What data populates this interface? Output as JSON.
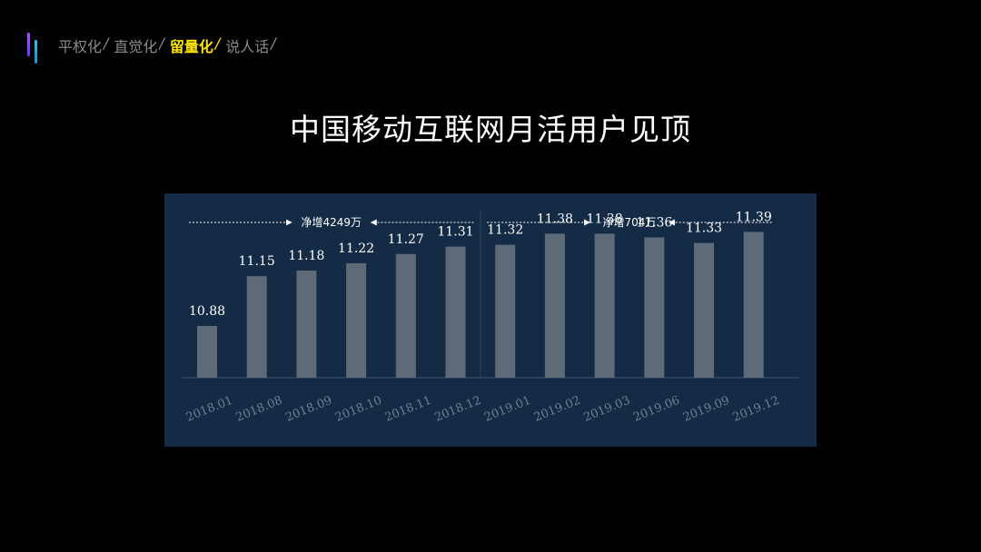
{
  "nav": {
    "items": [
      {
        "label": "平权化",
        "sep": "/",
        "active": false
      },
      {
        "label": "直觉化",
        "sep": "/",
        "active": false
      },
      {
        "label": "留量化",
        "sep": "/",
        "active": true
      },
      {
        "label": "说人话",
        "sep": "/",
        "active": false
      }
    ]
  },
  "title": "中国移动互联网月活用户见顶",
  "colors": {
    "background": "#000000",
    "panel": "#132b44",
    "bar": "#5f6a78",
    "active_nav": "#ffe600",
    "inactive_nav": "#8a8a8a"
  },
  "chart_data": {
    "type": "bar",
    "categories": [
      "2018.01",
      "2018.08",
      "2018.09",
      "2018.10",
      "2018.11",
      "2018.12",
      "2019.01",
      "2019.02",
      "2019.03",
      "2019.06",
      "2019.09",
      "2019.12"
    ],
    "values": [
      10.88,
      11.15,
      11.18,
      11.22,
      11.27,
      11.31,
      11.32,
      11.38,
      11.38,
      11.36,
      11.33,
      11.39
    ],
    "value_labels": [
      "10.88",
      "11.15",
      "11.18",
      "11.22",
      "11.27",
      "11.31",
      "11.32",
      "11.38",
      "11.38",
      "11.36",
      "11.33",
      "11.39"
    ],
    "ylim": [
      10.6,
      11.5
    ],
    "annotations": [
      {
        "text": "净增4249万",
        "group": "2018"
      },
      {
        "text": "净增704万",
        "group": "2019"
      }
    ],
    "grid": false
  }
}
